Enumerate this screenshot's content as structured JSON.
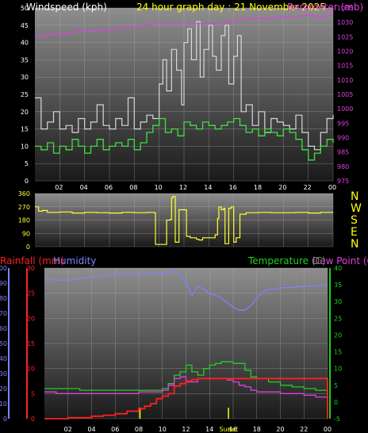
{
  "header": {
    "title": "24 hour graph day : 21 November 2025",
    "windspeed_label": "Windspeed (kph)",
    "barometer_label": "Barometer (mb)"
  },
  "bottom": {
    "rainfall_label": "Rainfall (mm)",
    "humidity_label": "Humidity",
    "temperature_label": "Temperature (C)",
    "dewpoint_label": "Dew Point (C)",
    "sunrise_label": "Sunrise",
    "sunset_label": "Sunset"
  },
  "direction": {
    "letters": [
      "N",
      "W",
      "S",
      "E",
      "N"
    ]
  },
  "colors": {
    "wind_gust": "#d8d8d8",
    "wind_avg": "#40e040",
    "barometer": "#e040e0",
    "direction": "#ffff33",
    "rainfall": "#ff2020",
    "humidity": "#8080ff",
    "temperature": "#20d020",
    "dewpoint": "#e040e0"
  },
  "chart_data": [
    {
      "type": "line",
      "x_ticks": [
        "02",
        "04",
        "06",
        "08",
        "10",
        "12",
        "14",
        "16",
        "18",
        "20",
        "22",
        "00"
      ],
      "y_left_ticks": [
        0,
        5,
        10,
        15,
        20,
        25,
        30,
        35,
        40,
        45,
        50
      ],
      "y_right_ticks": [
        975,
        980,
        985,
        990,
        995,
        1000,
        1005,
        1010,
        1015,
        1020,
        1025,
        1030,
        1035
      ],
      "ylim_left": [
        0,
        50
      ],
      "ylim_right": [
        975,
        1035
      ],
      "xlim": [
        0,
        24
      ],
      "series": [
        {
          "name": "Windspeed (kph)",
          "axis": "left",
          "key": "gust",
          "x": [
            0,
            0.5,
            1,
            1.5,
            2,
            2.5,
            3,
            3.5,
            4,
            4.5,
            5,
            5.5,
            6,
            6.5,
            7,
            7.5,
            8,
            8.5,
            9,
            9.5,
            10,
            10.3,
            10.6,
            11,
            11.4,
            11.8,
            12,
            12.3,
            12.6,
            13,
            13.3,
            13.6,
            14,
            14.3,
            14.6,
            15,
            15.3,
            15.6,
            16,
            16.3,
            16.6,
            17,
            17.5,
            18,
            18.5,
            19,
            19.5,
            20,
            20.5,
            21,
            21.5,
            22,
            22.5,
            23,
            23.5,
            24
          ],
          "values": [
            24,
            15,
            17,
            20,
            15,
            16,
            14,
            18,
            15,
            17,
            22,
            16,
            15,
            18,
            16,
            24,
            15,
            17,
            19,
            18,
            28,
            35,
            26,
            38,
            32,
            22,
            40,
            44,
            35,
            46,
            30,
            38,
            45,
            36,
            32,
            42,
            45,
            28,
            36,
            42,
            20,
            22,
            16,
            20,
            14,
            18,
            17,
            16,
            15,
            19,
            14,
            10,
            9,
            14,
            18,
            19
          ]
        },
        {
          "name": "Windspeed (kph)",
          "axis": "left",
          "key": "avg",
          "x": [
            0,
            0.5,
            1,
            1.5,
            2,
            2.5,
            3,
            3.5,
            4,
            4.5,
            5,
            5.5,
            6,
            6.5,
            7,
            7.5,
            8,
            8.5,
            9,
            9.5,
            10,
            10.5,
            11,
            11.5,
            12,
            12.5,
            13,
            13.5,
            14,
            14.5,
            15,
            15.5,
            16,
            16.5,
            17,
            17.5,
            18,
            18.5,
            19,
            19.5,
            20,
            20.5,
            21,
            21.5,
            22,
            22.5,
            23,
            23.5,
            24
          ],
          "values": [
            10,
            9,
            11,
            8,
            10,
            9,
            12,
            10,
            8,
            10,
            12,
            9,
            10,
            11,
            10,
            12,
            9,
            11,
            14,
            16,
            18,
            14,
            15,
            13,
            17,
            16,
            15,
            17,
            16,
            15,
            16,
            17,
            18,
            16,
            14,
            15,
            13,
            15,
            14,
            13,
            15,
            14,
            12,
            9,
            6,
            8,
            10,
            12,
            11
          ]
        },
        {
          "name": "Barometer (mb)",
          "axis": "right",
          "key": "baro",
          "x": [
            0,
            1,
            2,
            3,
            4,
            5,
            6,
            7,
            8,
            9,
            10,
            11,
            12,
            13,
            14,
            15,
            16,
            17,
            18,
            19,
            20,
            21,
            22,
            23,
            24
          ],
          "values": [
            1025,
            1025.5,
            1026,
            1026.5,
            1027,
            1027,
            1027.5,
            1028,
            1028.5,
            1029,
            1029.5,
            1029.5,
            1029.5,
            1029.5,
            1029.5,
            1029.5,
            1030.5,
            1031,
            1031.5,
            1031.5,
            1032,
            1032,
            1032.5,
            1032,
            1032.5
          ]
        }
      ]
    },
    {
      "type": "line",
      "x_ticks": [
        "02",
        "04",
        "06",
        "08",
        "10",
        "12",
        "14",
        "16",
        "18",
        "20",
        "22",
        "00"
      ],
      "y_left_ticks": [
        0,
        90,
        180,
        270,
        360
      ],
      "ylim_left": [
        0,
        360
      ],
      "xlim": [
        0,
        24
      ],
      "series": [
        {
          "name": "Wind direction",
          "axis": "left",
          "key": "dir",
          "x": [
            0,
            0.3,
            0.6,
            1,
            2,
            3,
            4,
            5,
            6,
            7,
            8,
            9,
            9.6,
            9.7,
            10.5,
            10.6,
            10.9,
            11,
            11.1,
            11.3,
            11.4,
            11.6,
            12,
            12.2,
            12.3,
            12.5,
            13,
            13.2,
            13.5,
            14,
            14.5,
            14.7,
            14.8,
            15,
            15.2,
            15.3,
            15.6,
            15.8,
            16,
            16.2,
            16.5,
            17,
            18,
            19,
            20,
            21,
            22,
            23,
            24
          ],
          "values": [
            270,
            240,
            245,
            232,
            235,
            228,
            232,
            230,
            228,
            232,
            230,
            232,
            230,
            15,
            15,
            180,
            185,
            330,
            340,
            30,
            30,
            250,
            250,
            70,
            70,
            60,
            50,
            45,
            60,
            60,
            80,
            190,
            270,
            250,
            260,
            20,
            260,
            270,
            30,
            60,
            220,
            230,
            232,
            230,
            230,
            232,
            228,
            232,
            232
          ]
        }
      ]
    },
    {
      "type": "line",
      "x_ticks": [
        "02",
        "04",
        "06",
        "08",
        "10",
        "12",
        "14",
        "16",
        "18",
        "20",
        "22",
        "00"
      ],
      "y_rain_ticks": [
        0,
        5,
        10,
        15,
        20,
        25,
        30
      ],
      "y_hum_ticks": [
        0,
        10,
        20,
        30,
        40,
        50,
        60,
        70,
        80,
        90,
        100
      ],
      "y_temp_ticks": [
        -5,
        0,
        5,
        10,
        15,
        20,
        25,
        30,
        35,
        40
      ],
      "ylim_rain": [
        0,
        30
      ],
      "ylim_hum": [
        0,
        100
      ],
      "ylim_temp": [
        -5,
        40
      ],
      "xlim": [
        0,
        24
      ],
      "series": [
        {
          "name": "Humidity",
          "axis": "humidity",
          "key": "hum",
          "x": [
            0,
            1,
            2,
            3,
            4,
            5,
            6,
            7,
            8,
            9,
            9.5,
            10,
            10.5,
            11,
            11.5,
            12,
            12.5,
            13,
            13.5,
            14,
            14.5,
            15,
            15.5,
            16,
            16.5,
            17,
            17.5,
            18,
            18.5,
            19,
            19.5,
            20,
            21,
            22,
            23,
            24
          ],
          "values": [
            94,
            92,
            92,
            93,
            94,
            95,
            96,
            96,
            96,
            96,
            97,
            97,
            97,
            98,
            96,
            90,
            82,
            88,
            86,
            83,
            82,
            80,
            77,
            74,
            72,
            72,
            75,
            80,
            84,
            86,
            86,
            87,
            87,
            88,
            88,
            89
          ]
        },
        {
          "name": "Temperature (C)",
          "axis": "temperature",
          "key": "temp",
          "x": [
            0,
            1,
            2,
            3,
            4,
            5,
            6,
            7,
            8,
            9,
            10,
            10.5,
            11,
            11.5,
            12,
            12.5,
            13,
            13.5,
            14,
            14.5,
            15,
            15.5,
            16,
            16.5,
            17,
            17.5,
            18,
            19,
            20,
            21,
            22,
            23,
            24
          ],
          "values": [
            4,
            4,
            4,
            3.5,
            3.5,
            3.5,
            3.5,
            3.5,
            3.5,
            3.5,
            4,
            5.5,
            8,
            9,
            11,
            9,
            8,
            10,
            11,
            11.5,
            12,
            12,
            11.5,
            11.5,
            9.5,
            7.5,
            7,
            6,
            5,
            4.5,
            4,
            3.5,
            3.5
          ]
        },
        {
          "name": "Dew Point (C)",
          "axis": "temperature",
          "key": "dew",
          "x": [
            0,
            1,
            2,
            3,
            4,
            5,
            6,
            7,
            8,
            9,
            10,
            10.5,
            11,
            11.5,
            12,
            12.5,
            13,
            13.5,
            14,
            14.5,
            15,
            15.5,
            16,
            16.5,
            17,
            17.5,
            18,
            19,
            20,
            21,
            22,
            23,
            24
          ],
          "values": [
            3,
            2.5,
            2.5,
            2.5,
            2.5,
            2.5,
            2.5,
            2.5,
            3,
            3,
            3.5,
            5,
            7,
            7.5,
            6,
            6,
            7,
            7,
            7,
            7,
            7,
            6.5,
            6,
            5,
            4.5,
            3.5,
            3,
            3,
            2.5,
            2.5,
            2,
            1.5,
            1
          ]
        },
        {
          "name": "Rainfall (mm)",
          "axis": "rain",
          "key": "rain",
          "x": [
            0,
            2,
            4,
            5,
            6,
            7,
            8,
            8.5,
            9,
            9.5,
            10,
            10.5,
            11,
            11.5,
            12,
            12.5,
            13,
            13.5,
            14,
            15,
            16,
            17,
            18,
            19,
            20,
            21,
            22,
            23,
            23.9,
            24
          ],
          "values": [
            0,
            0.2,
            0.5,
            0.7,
            1,
            1.5,
            2,
            2.5,
            3,
            4,
            4.5,
            5,
            6.5,
            7,
            7.5,
            7.8,
            8,
            8,
            8,
            8,
            8,
            8,
            8,
            8,
            8,
            8,
            8,
            8,
            8,
            0
          ]
        }
      ]
    }
  ]
}
